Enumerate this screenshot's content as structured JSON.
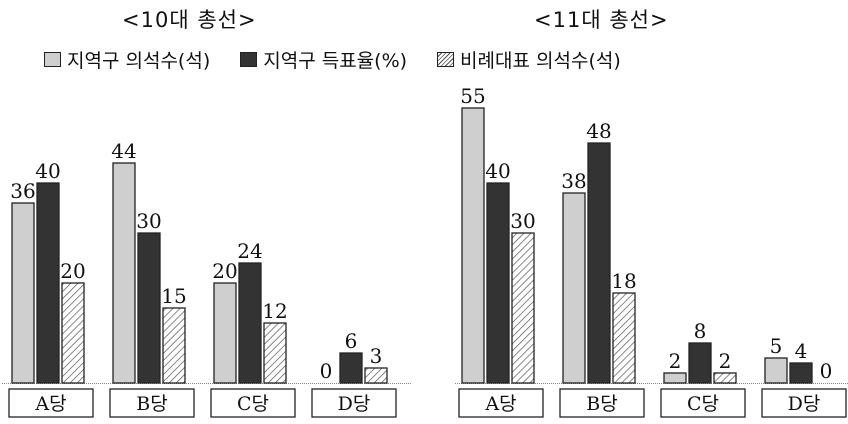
{
  "titles": {
    "left": "<10대 총선>",
    "right": "<11대 총선>"
  },
  "legend": {
    "seats": "지역구 의석수(석)",
    "vote": "지역구 득표율(%)",
    "prop": "비례대표 의석수(석)"
  },
  "colors": {
    "seats": "#cfcfcf",
    "vote": "#333333",
    "prop_hatch": "#555555"
  },
  "chart_data": [
    {
      "type": "bar",
      "title": "<10대 총선>",
      "categories": [
        "A당",
        "B당",
        "C당",
        "D당"
      ],
      "series": [
        {
          "name": "지역구 의석수(석)",
          "values": [
            36,
            44,
            20,
            0
          ]
        },
        {
          "name": "지역구 득표율(%)",
          "values": [
            40,
            30,
            24,
            6
          ]
        },
        {
          "name": "비례대표 의석수(석)",
          "values": [
            20,
            15,
            12,
            3
          ]
        }
      ],
      "ylim": [
        0,
        55
      ],
      "grid": false,
      "legend_position": "top"
    },
    {
      "type": "bar",
      "title": "<11대 총선>",
      "categories": [
        "A당",
        "B당",
        "C당",
        "D당"
      ],
      "series": [
        {
          "name": "지역구 의석수(석)",
          "values": [
            55,
            38,
            2,
            5
          ]
        },
        {
          "name": "지역구 득표율(%)",
          "values": [
            40,
            48,
            8,
            4
          ]
        },
        {
          "name": "비례대표 의석수(석)",
          "values": [
            30,
            18,
            2,
            0
          ]
        }
      ],
      "ylim": [
        0,
        55
      ],
      "grid": false,
      "legend_position": "top"
    }
  ]
}
